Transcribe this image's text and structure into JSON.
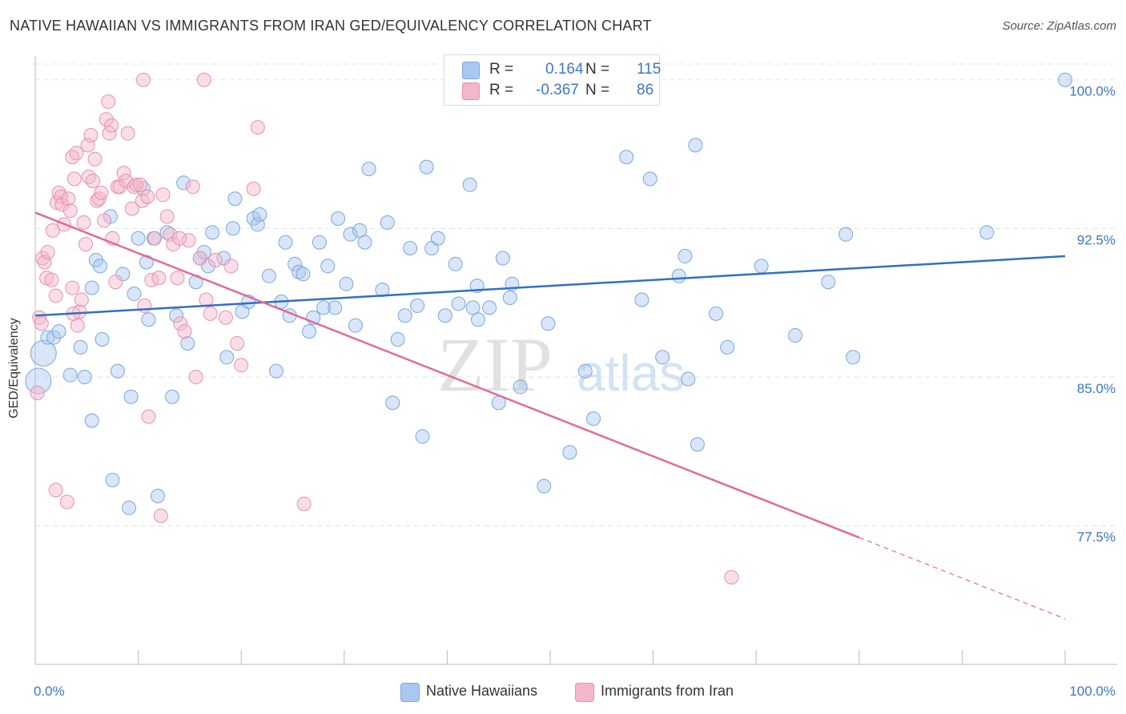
{
  "header": {
    "title": "NATIVE HAWAIIAN VS IMMIGRANTS FROM IRAN GED/EQUIVALENCY CORRELATION CHART",
    "source": "Source: ZipAtlas.com"
  },
  "legend": {
    "r_label": "R =",
    "n_label": "N =",
    "rows": [
      {
        "r": "0.164",
        "n": "115"
      },
      {
        "r": "-0.367",
        "n": "86"
      }
    ]
  },
  "bottom_legend": {
    "items": [
      "Native Hawaiians",
      "Immigrants from Iran"
    ]
  },
  "watermark": {
    "zip": "ZIP",
    "atlas": "atlas"
  },
  "colors": {
    "blue_fill": "#a9c8f0",
    "blue_stroke": "#7aa6dc",
    "blue_line": "#2f70c8",
    "pink_fill": "#f4b6c9",
    "pink_stroke": "#ea8fab",
    "pink_line": "#e06a92",
    "tick_label": "#3b78c4",
    "grid": "#e3e3e3"
  },
  "chart_data": {
    "type": "scatter",
    "title": "NATIVE HAWAIIAN VS IMMIGRANTS FROM IRAN GED/EQUIVALENCY CORRELATION CHART",
    "xlabel": "",
    "ylabel": "GED/Equivalency",
    "xlim": [
      0,
      100
    ],
    "ylim": [
      70.5,
      101.2
    ],
    "x_tick_labels": [
      "0.0%",
      "100.0%"
    ],
    "y_ticks": [
      77.5,
      85.0,
      92.5,
      100.0
    ],
    "y_tick_labels": [
      "77.5%",
      "85.0%",
      "92.5%",
      "100.0%"
    ],
    "grid": true,
    "legend_position": "top-center",
    "series": [
      {
        "name": "Native Hawaiians",
        "r": 0.164,
        "n": 115,
        "trend": {
          "x": [
            0,
            100
          ],
          "y": [
            88.1,
            91.1
          ]
        },
        "points": [
          [
            0.3,
            84.8
          ],
          [
            0.8,
            86.2
          ],
          [
            1.2,
            87.0
          ],
          [
            1.8,
            87.0
          ],
          [
            2.3,
            87.3
          ],
          [
            3.4,
            85.1
          ],
          [
            4.4,
            86.5
          ],
          [
            4.8,
            85.0
          ],
          [
            5.5,
            89.5
          ],
          [
            5.5,
            82.8
          ],
          [
            5.9,
            90.9
          ],
          [
            6.3,
            90.6
          ],
          [
            6.5,
            86.9
          ],
          [
            7.3,
            93.1
          ],
          [
            7.5,
            79.8
          ],
          [
            8.0,
            85.3
          ],
          [
            8.5,
            90.2
          ],
          [
            9.1,
            78.4
          ],
          [
            9.3,
            84.0
          ],
          [
            9.6,
            89.2
          ],
          [
            10.0,
            92.0
          ],
          [
            10.5,
            94.5
          ],
          [
            10.8,
            90.8
          ],
          [
            11.0,
            87.9
          ],
          [
            11.5,
            92.0
          ],
          [
            11.9,
            79.0
          ],
          [
            12.8,
            92.3
          ],
          [
            13.3,
            84.0
          ],
          [
            13.7,
            88.1
          ],
          [
            14.4,
            94.8
          ],
          [
            14.8,
            86.7
          ],
          [
            15.6,
            89.8
          ],
          [
            16.0,
            91.0
          ],
          [
            16.4,
            91.3
          ],
          [
            16.8,
            90.6
          ],
          [
            17.2,
            92.3
          ],
          [
            18.3,
            91.0
          ],
          [
            18.6,
            86.0
          ],
          [
            19.2,
            92.5
          ],
          [
            19.4,
            94.0
          ],
          [
            20.1,
            88.3
          ],
          [
            20.7,
            88.8
          ],
          [
            21.2,
            93.0
          ],
          [
            21.6,
            92.7
          ],
          [
            21.8,
            93.2
          ],
          [
            22.7,
            90.1
          ],
          [
            23.4,
            85.3
          ],
          [
            23.9,
            88.8
          ],
          [
            24.3,
            91.8
          ],
          [
            24.7,
            88.1
          ],
          [
            25.2,
            90.7
          ],
          [
            25.6,
            90.3
          ],
          [
            26.0,
            90.2
          ],
          [
            26.6,
            87.3
          ],
          [
            27.0,
            88.0
          ],
          [
            27.6,
            91.8
          ],
          [
            28.0,
            88.5
          ],
          [
            28.4,
            90.6
          ],
          [
            29.1,
            88.5
          ],
          [
            29.4,
            93.0
          ],
          [
            30.2,
            89.7
          ],
          [
            30.6,
            92.2
          ],
          [
            31.1,
            87.6
          ],
          [
            31.5,
            92.4
          ],
          [
            32.0,
            91.8
          ],
          [
            32.4,
            95.5
          ],
          [
            33.7,
            89.4
          ],
          [
            34.2,
            92.8
          ],
          [
            34.7,
            83.7
          ],
          [
            35.2,
            86.9
          ],
          [
            35.9,
            88.1
          ],
          [
            36.4,
            91.5
          ],
          [
            37.1,
            88.6
          ],
          [
            37.6,
            82.0
          ],
          [
            38.0,
            95.6
          ],
          [
            38.5,
            91.5
          ],
          [
            39.1,
            92.0
          ],
          [
            39.8,
            88.1
          ],
          [
            40.8,
            90.7
          ],
          [
            41.1,
            88.7
          ],
          [
            42.2,
            94.7
          ],
          [
            42.5,
            88.5
          ],
          [
            42.9,
            89.6
          ],
          [
            43.0,
            87.9
          ],
          [
            44.1,
            88.5
          ],
          [
            45.0,
            83.7
          ],
          [
            45.4,
            91.0
          ],
          [
            46.1,
            89.0
          ],
          [
            46.3,
            89.7
          ],
          [
            47.1,
            84.5
          ],
          [
            49.4,
            79.5
          ],
          [
            49.8,
            87.7
          ],
          [
            51.9,
            81.2
          ],
          [
            53.4,
            85.3
          ],
          [
            54.2,
            82.9
          ],
          [
            57.4,
            96.1
          ],
          [
            58.5,
            100.0
          ],
          [
            58.9,
            88.9
          ],
          [
            59.7,
            95.0
          ],
          [
            60.9,
            86.0
          ],
          [
            62.5,
            90.1
          ],
          [
            63.1,
            91.1
          ],
          [
            63.4,
            84.9
          ],
          [
            64.1,
            96.7
          ],
          [
            64.3,
            81.6
          ],
          [
            66.1,
            88.2
          ],
          [
            67.2,
            86.5
          ],
          [
            70.5,
            90.6
          ],
          [
            73.8,
            87.1
          ],
          [
            77.0,
            89.8
          ],
          [
            78.7,
            92.2
          ],
          [
            79.4,
            86.0
          ],
          [
            92.4,
            92.3
          ],
          [
            100.0,
            100.0
          ]
        ]
      },
      {
        "name": "Immigrants from Iran",
        "r": -0.367,
        "n": 86,
        "trend": {
          "x": [
            0,
            80
          ],
          "y": [
            93.3,
            76.9
          ]
        },
        "trend_dashed": {
          "x": [
            80,
            100
          ],
          "y": [
            76.9,
            72.8
          ]
        },
        "points": [
          [
            0.2,
            84.2
          ],
          [
            0.4,
            88.0
          ],
          [
            0.6,
            87.7
          ],
          [
            0.7,
            91.0
          ],
          [
            0.9,
            90.8
          ],
          [
            1.1,
            90.0
          ],
          [
            1.2,
            91.3
          ],
          [
            1.6,
            89.9
          ],
          [
            1.7,
            92.4
          ],
          [
            2.0,
            89.1
          ],
          [
            2.1,
            93.8
          ],
          [
            2.3,
            94.3
          ],
          [
            2.5,
            94.1
          ],
          [
            2.6,
            93.7
          ],
          [
            2.8,
            92.7
          ],
          [
            3.2,
            94.0
          ],
          [
            3.4,
            93.4
          ],
          [
            3.6,
            96.1
          ],
          [
            3.6,
            89.5
          ],
          [
            3.8,
            95.0
          ],
          [
            4.0,
            96.3
          ],
          [
            4.1,
            87.6
          ],
          [
            4.3,
            88.3
          ],
          [
            4.5,
            88.9
          ],
          [
            4.7,
            92.8
          ],
          [
            4.9,
            91.7
          ],
          [
            5.1,
            96.7
          ],
          [
            5.2,
            95.1
          ],
          [
            5.4,
            97.2
          ],
          [
            5.6,
            94.9
          ],
          [
            5.8,
            96.0
          ],
          [
            6.0,
            93.9
          ],
          [
            6.2,
            94.0
          ],
          [
            6.4,
            94.3
          ],
          [
            6.7,
            92.9
          ],
          [
            6.9,
            98.0
          ],
          [
            7.1,
            98.9
          ],
          [
            7.2,
            97.3
          ],
          [
            7.4,
            97.7
          ],
          [
            7.5,
            92.0
          ],
          [
            7.8,
            89.8
          ],
          [
            8.0,
            94.6
          ],
          [
            8.2,
            94.6
          ],
          [
            8.6,
            95.3
          ],
          [
            8.8,
            94.9
          ],
          [
            9.0,
            97.3
          ],
          [
            9.4,
            93.5
          ],
          [
            9.6,
            94.6
          ],
          [
            9.8,
            94.7
          ],
          [
            10.2,
            94.7
          ],
          [
            10.4,
            93.9
          ],
          [
            10.6,
            88.6
          ],
          [
            10.9,
            94.1
          ],
          [
            11.0,
            83.0
          ],
          [
            11.3,
            89.9
          ],
          [
            11.6,
            92.0
          ],
          [
            12.0,
            90.0
          ],
          [
            12.2,
            78.0
          ],
          [
            12.4,
            94.2
          ],
          [
            12.8,
            93.1
          ],
          [
            13.1,
            92.2
          ],
          [
            13.4,
            91.7
          ],
          [
            13.8,
            90.0
          ],
          [
            14.1,
            87.7
          ],
          [
            14.5,
            87.3
          ],
          [
            14.9,
            91.9
          ],
          [
            15.3,
            94.6
          ],
          [
            15.6,
            85.0
          ],
          [
            16.0,
            91.0
          ],
          [
            16.4,
            100.0
          ],
          [
            16.6,
            88.9
          ],
          [
            17.0,
            88.2
          ],
          [
            17.5,
            90.9
          ],
          [
            18.5,
            88.0
          ],
          [
            19.0,
            90.6
          ],
          [
            19.6,
            86.7
          ],
          [
            20.0,
            85.6
          ],
          [
            21.2,
            94.5
          ],
          [
            21.6,
            97.6
          ],
          [
            26.1,
            78.6
          ],
          [
            2.0,
            79.3
          ],
          [
            3.1,
            78.7
          ],
          [
            3.7,
            88.2
          ],
          [
            10.5,
            100.0
          ],
          [
            14.0,
            92.0
          ],
          [
            67.6,
            74.9
          ]
        ]
      }
    ]
  }
}
